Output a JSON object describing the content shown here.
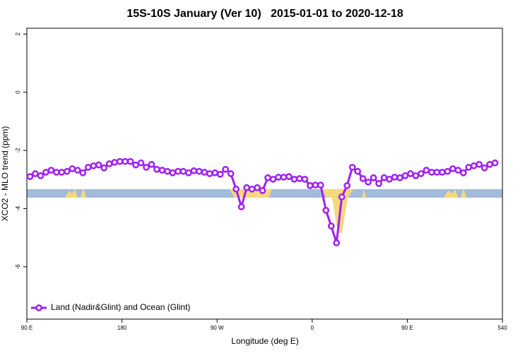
{
  "chart_data": {
    "type": "line",
    "title": "15S-10S January (Ver 10)   2015-01-01 to 2020-12-18",
    "x_label": "Longitude (deg E)",
    "y_label": "XCO2 - MLO trend (ppm)",
    "x": [
      93,
      98,
      103,
      108,
      113,
      118,
      123,
      128,
      133,
      138,
      143,
      148,
      153,
      158,
      163,
      168,
      173,
      178,
      183,
      188,
      193,
      198,
      203,
      208,
      213,
      218,
      223,
      228,
      233,
      238,
      243,
      248,
      253,
      258,
      263,
      268,
      273,
      278,
      283,
      288,
      293,
      298,
      303,
      308,
      313,
      318,
      323,
      328,
      333,
      338,
      343,
      348,
      353,
      358,
      363,
      368,
      373,
      378,
      383,
      388,
      393,
      398,
      403,
      408,
      413,
      418,
      423,
      428,
      433,
      438,
      443,
      448,
      453,
      458,
      463,
      468,
      473,
      478,
      483,
      488,
      493,
      498,
      503,
      508,
      513,
      518,
      523,
      528,
      533
    ],
    "series": [
      {
        "name": "Land (Nadir&Glint) and Ocean (Glint)",
        "color": "#a020f0",
        "values": [
          -2.9,
          -2.8,
          -2.87,
          -2.75,
          -2.68,
          -2.75,
          -2.75,
          -2.72,
          -2.63,
          -2.68,
          -2.77,
          -2.58,
          -2.53,
          -2.5,
          -2.6,
          -2.46,
          -2.41,
          -2.38,
          -2.38,
          -2.38,
          -2.5,
          -2.43,
          -2.58,
          -2.48,
          -2.65,
          -2.68,
          -2.72,
          -2.77,
          -2.72,
          -2.72,
          -2.77,
          -2.7,
          -2.72,
          -2.75,
          -2.8,
          -2.77,
          -2.82,
          -2.65,
          -2.8,
          -3.33,
          -3.94,
          -3.28,
          -3.33,
          -3.28,
          -3.38,
          -2.94,
          -2.99,
          -2.92,
          -2.92,
          -2.9,
          -2.99,
          -2.97,
          -2.99,
          -3.21,
          -3.19,
          -3.19,
          -4.06,
          -4.6,
          -5.18,
          -3.6,
          -3.21,
          -2.58,
          -2.72,
          -2.97,
          -3.09,
          -2.94,
          -3.14,
          -2.94,
          -2.99,
          -2.92,
          -2.94,
          -2.87,
          -2.8,
          -2.87,
          -2.8,
          -2.68,
          -2.75,
          -2.75,
          -2.75,
          -2.72,
          -2.63,
          -2.68,
          -2.77,
          -2.58,
          -2.53,
          -2.48,
          -2.6,
          -2.48,
          -2.43
        ]
      }
    ],
    "xlim": [
      90,
      540
    ],
    "xticks": [
      {
        "value": 90,
        "label": "90 E"
      },
      180,
      {
        "value": 270,
        "label": "90 W"
      },
      {
        "value": 360,
        "label": "0"
      },
      {
        "value": 450,
        "label": "90 E"
      },
      540
    ],
    "ylim": [
      -7.8,
      2.2
    ],
    "yticks": [
      2,
      0,
      -2,
      -4,
      -6
    ],
    "legend": "bottom-left"
  }
}
